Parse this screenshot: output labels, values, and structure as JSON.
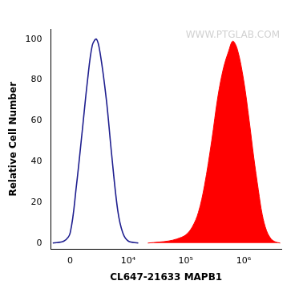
{
  "chart_data": {
    "type": "line",
    "xlabel": "CL647-21633 MAPB1",
    "ylabel": "Relative Cell Number",
    "annotations": [
      "WWW.PTGLAB.COM"
    ],
    "x": [
      -1500,
      -500,
      0,
      500,
      1000,
      1500,
      2000,
      2500,
      3000,
      4000,
      5000,
      6500,
      8000,
      10000,
      15000,
      22000,
      35000,
      50000,
      70000,
      100000,
      130000,
      165000,
      210000,
      280000,
      360000,
      450000,
      550000,
      650000,
      780000,
      1000000,
      1250000,
      1500000,
      1800000,
      2100000,
      2500000,
      3000000,
      3600000,
      4300000
    ],
    "series": [
      {
        "color": "#1f1f8f",
        "type": "line",
        "values": [
          0,
          1,
          5,
          28,
          55,
          80,
          97,
          100,
          93,
          70,
          44,
          16,
          5,
          1,
          0,
          null,
          null,
          null,
          null,
          null,
          null,
          null,
          null,
          null,
          null,
          null,
          null,
          null,
          null,
          null,
          null,
          null,
          null,
          null,
          null,
          null,
          null,
          null
        ]
      },
      {
        "color": "#ff0000",
        "type": "area",
        "values": [
          null,
          null,
          null,
          null,
          null,
          null,
          null,
          null,
          null,
          null,
          null,
          null,
          null,
          null,
          null,
          0,
          0.5,
          1,
          2,
          4,
          8,
          15,
          28,
          50,
          72,
          86,
          94,
          99,
          95,
          80,
          60,
          42,
          26,
          14,
          6,
          2,
          0.5,
          0
        ]
      }
    ],
    "xlim": [
      -1700,
      4500000
    ],
    "xticks": [
      0,
      {
        "value": 10000,
        "label": "10⁴"
      },
      {
        "value": 100000,
        "label": "10⁵"
      },
      {
        "value": 1000000,
        "label": "10⁶"
      }
    ],
    "ylim": [
      -3,
      105
    ],
    "yticks": [
      0,
      20,
      40,
      60,
      80,
      100
    ],
    "grid": false
  }
}
